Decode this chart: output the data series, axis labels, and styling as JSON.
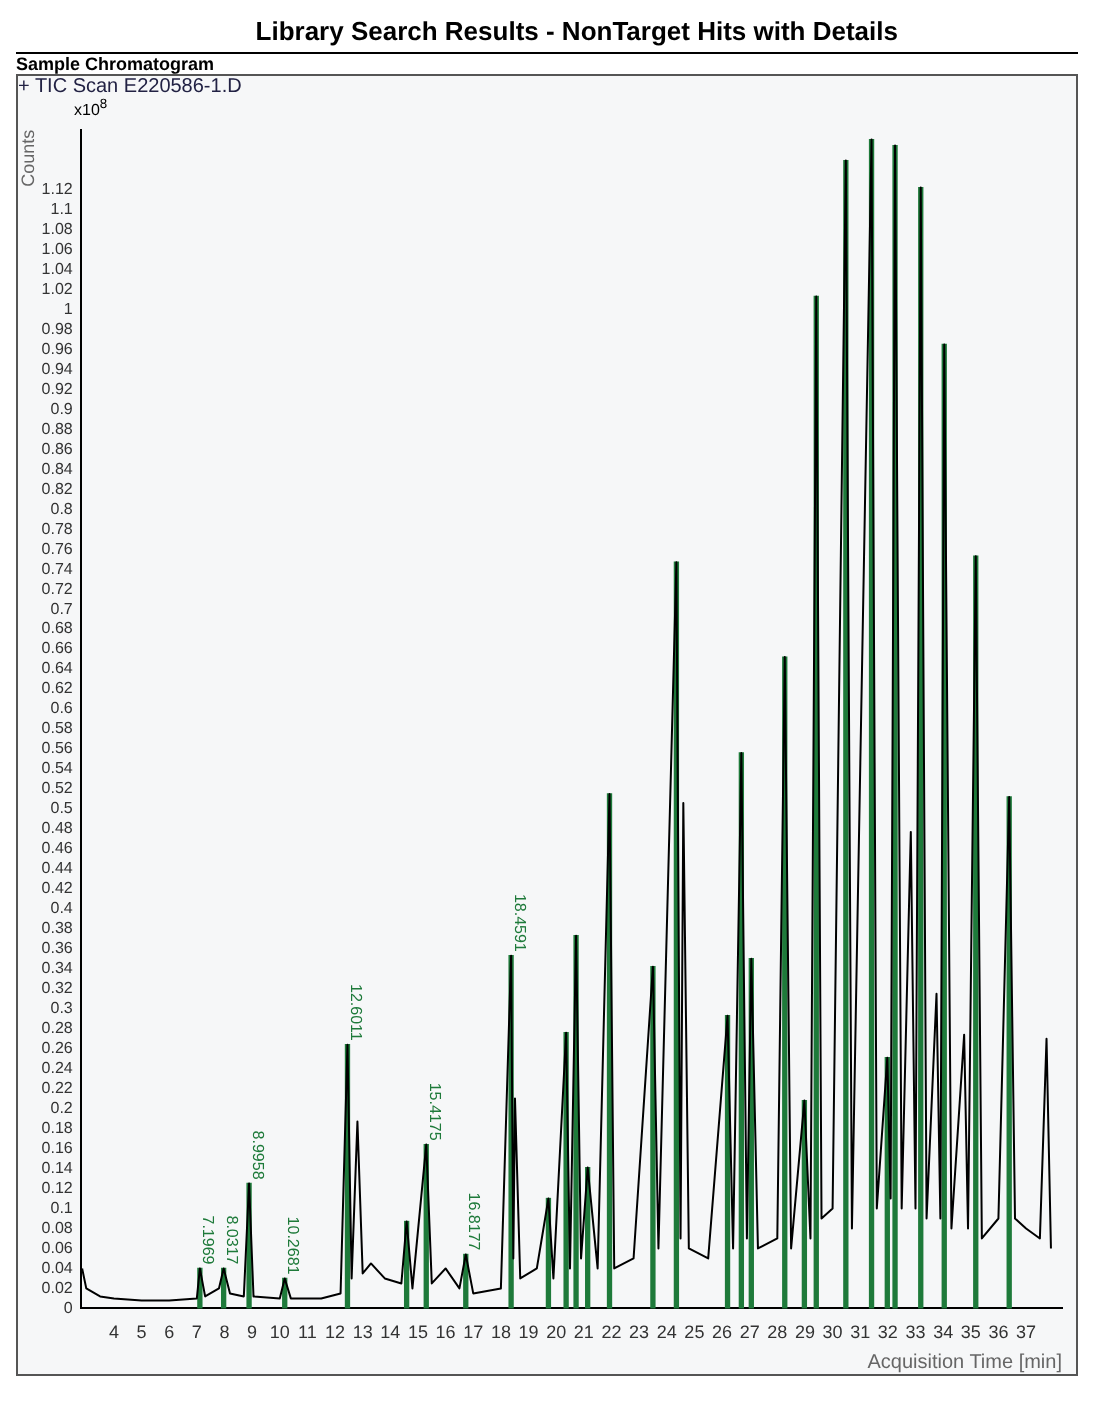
{
  "chart_data": {
    "type": "line",
    "title": "Library Search Results - NonTarget Hits with Details",
    "subtitle": "Sample Chromatogram",
    "ylabel": "Counts",
    "xlabel": "Acquisition Time [min]",
    "annotations": [
      "+ TIC Scan E220586-1.D",
      "x10$^{8}$",
      {
        "text": "7.1969",
        "x": 7.11,
        "y": 0.04
      },
      {
        "text": "8.0317",
        "x": 7.97,
        "y": 0.04
      },
      {
        "text": "8.9958",
        "x": 8.89,
        "y": 0.125
      },
      {
        "text": "10.2681",
        "x": 10.18,
        "y": 0.03
      },
      {
        "text": "12.6011",
        "x": 12.45,
        "y": 0.264
      },
      {
        "text": "15.4175",
        "x": 15.3,
        "y": 0.164
      },
      {
        "text": "16.8177",
        "x": 16.73,
        "y": 0.054
      },
      {
        "text": "18.4591",
        "x": 18.37,
        "y": 0.353
      }
    ],
    "xlim": [
      2.8,
      38.3
    ],
    "xticks": [
      4,
      5,
      6,
      7,
      8,
      9,
      10,
      11,
      12,
      13,
      14,
      15,
      16,
      17,
      18,
      19,
      20,
      21,
      22,
      23,
      24,
      25,
      26,
      27,
      28,
      29,
      30,
      31,
      32,
      33,
      34,
      35,
      36,
      37
    ],
    "ylim": [
      0,
      1.18
    ],
    "yticks": [
      0,
      0.02,
      0.04,
      0.06,
      0.08,
      0.1,
      0.12,
      0.14,
      0.16,
      0.18,
      0.2,
      0.22,
      0.24,
      0.26,
      0.28,
      0.3,
      0.32,
      0.34,
      0.36,
      0.38,
      0.4,
      0.42,
      0.44,
      0.46,
      0.48,
      0.5,
      0.52,
      0.54,
      0.56,
      0.58,
      0.6,
      0.62,
      0.64,
      0.66,
      0.68,
      0.7,
      0.72,
      0.74,
      0.76,
      0.78,
      0.8,
      0.82,
      0.84,
      0.86,
      0.88,
      0.9,
      0.92,
      0.94,
      0.96,
      0.98,
      1,
      1.02,
      1.04,
      1.06,
      1.08,
      1.1,
      1.12
    ],
    "grid": false,
    "legend": false,
    "marker": "none",
    "line_style": "solid",
    "series": [
      {
        "color": "#000000",
        "x": [
          2.85,
          3.0,
          3.5,
          4,
          5,
          6,
          7.0,
          7.11,
          7.3,
          7.8,
          7.97,
          8.2,
          8.7,
          8.89,
          9.05,
          10.0,
          10.18,
          10.4,
          11.5,
          12.2,
          12.45,
          12.6,
          12.81,
          13.0,
          13.3,
          13.8,
          14.4,
          14.59,
          14.8,
          15.3,
          15.5,
          16.0,
          16.5,
          16.73,
          17.0,
          18.0,
          18.37,
          18.45,
          18.51,
          18.7,
          19.3,
          19.72,
          19.9,
          20.36,
          20.5,
          20.72,
          20.9,
          21.14,
          21.5,
          21.93,
          22.1,
          22.8,
          23.5,
          23.7,
          24.35,
          24.5,
          24.6,
          24.8,
          25.5,
          26.2,
          26.4,
          26.7,
          26.9,
          27.06,
          27.3,
          28.0,
          28.27,
          28.5,
          28.98,
          29.2,
          29.41,
          29.6,
          30.0,
          30.48,
          30.7,
          31.41,
          31.6,
          31.98,
          32.1,
          32.26,
          32.5,
          32.83,
          33.0,
          33.19,
          33.4,
          33.76,
          33.9,
          34.04,
          34.3,
          34.76,
          34.9,
          35.18,
          35.4,
          36.0,
          36.39,
          36.6,
          37.0,
          37.5,
          37.74,
          37.9
        ],
        "values": [
          0.04,
          0.02,
          0.012,
          0.01,
          0.008,
          0.008,
          0.01,
          0.04,
          0.012,
          0.02,
          0.04,
          0.015,
          0.012,
          0.125,
          0.012,
          0.01,
          0.03,
          0.01,
          0.01,
          0.015,
          0.264,
          0.03,
          0.187,
          0.035,
          0.045,
          0.03,
          0.025,
          0.087,
          0.02,
          0.164,
          0.025,
          0.04,
          0.02,
          0.054,
          0.015,
          0.02,
          0.353,
          0.05,
          0.21,
          0.03,
          0.04,
          0.11,
          0.03,
          0.276,
          0.04,
          0.373,
          0.05,
          0.141,
          0.04,
          0.515,
          0.04,
          0.05,
          0.342,
          0.06,
          0.747,
          0.07,
          0.506,
          0.06,
          0.05,
          0.293,
          0.06,
          0.556,
          0.07,
          0.35,
          0.06,
          0.07,
          0.652,
          0.06,
          0.208,
          0.07,
          1.013,
          0.09,
          0.1,
          1.149,
          0.08,
          1.17,
          0.1,
          0.251,
          0.11,
          1.164,
          0.1,
          0.477,
          0.1,
          1.122,
          0.09,
          0.315,
          0.09,
          0.965,
          0.08,
          0.274,
          0.08,
          0.753,
          0.07,
          0.09,
          0.512,
          0.09,
          0.08,
          0.07,
          0.27,
          0.06
        ]
      },
      {
        "type": "bar",
        "color": "#1e7a3a",
        "x": [
          7.11,
          7.97,
          8.89,
          10.18,
          12.45,
          14.59,
          15.3,
          16.73,
          18.37,
          19.72,
          20.36,
          20.72,
          21.14,
          21.93,
          23.5,
          24.35,
          26.2,
          26.7,
          27.06,
          28.27,
          28.98,
          29.41,
          30.48,
          31.41,
          31.98,
          32.26,
          33.19,
          34.04,
          35.18,
          36.39
        ],
        "values": [
          0.04,
          0.04,
          0.125,
          0.03,
          0.264,
          0.087,
          0.164,
          0.054,
          0.353,
          0.11,
          0.276,
          0.373,
          0.141,
          0.515,
          0.342,
          0.747,
          0.293,
          0.556,
          0.35,
          0.652,
          0.208,
          1.013,
          1.149,
          1.17,
          0.251,
          1.164,
          1.122,
          0.965,
          0.753,
          0.512
        ]
      }
    ]
  }
}
